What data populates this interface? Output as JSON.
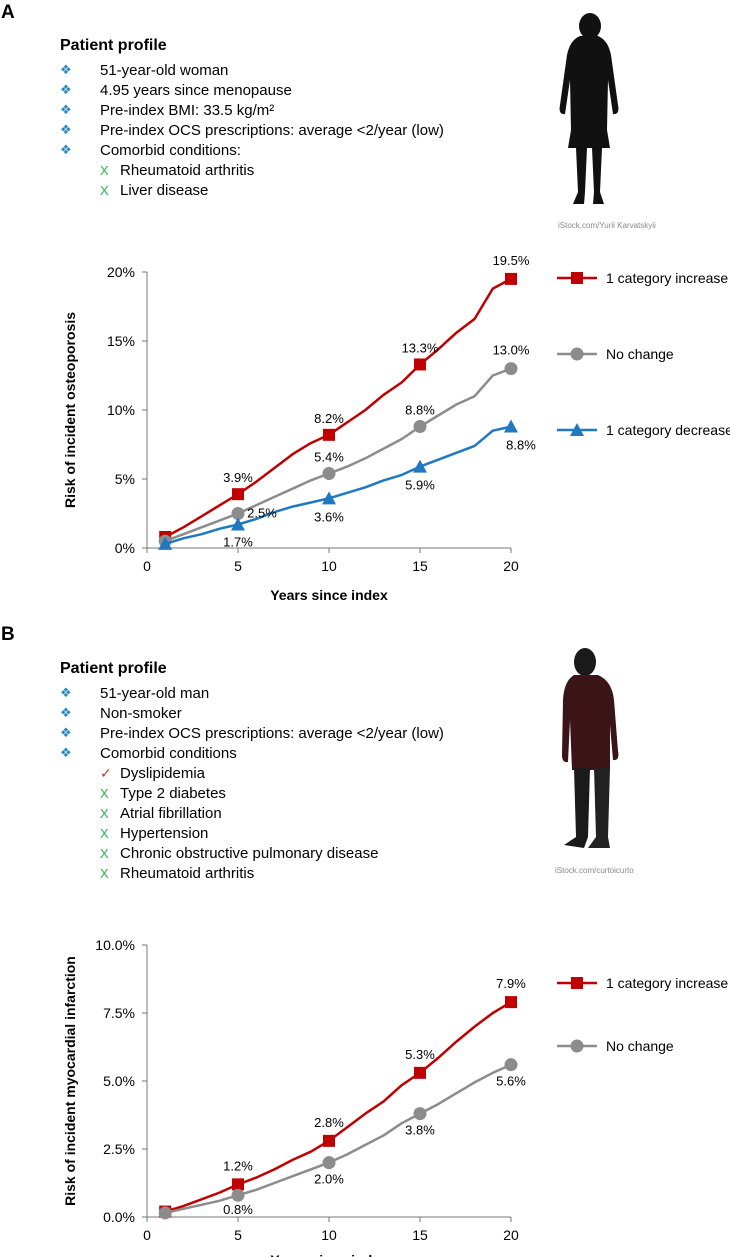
{
  "panel_a": {
    "letter": "A",
    "profile": {
      "title": "Patient profile",
      "items": [
        "51-year-old woman",
        "4.95 years since menopause",
        "Pre-index BMI: 33.5 kg/m²",
        "Pre-index OCS prescriptions: average <2/year (low)",
        "Comorbid conditions:"
      ],
      "comorbid": [
        {
          "mark": "X",
          "label": "Rheumatoid arthritis"
        },
        {
          "mark": "X",
          "label": "Liver disease"
        }
      ]
    },
    "image_credit": "iStock.com/Yurii Karvatskyii"
  },
  "panel_b": {
    "letter": "B",
    "profile": {
      "title": "Patient profile",
      "items": [
        "51-year-old man",
        "Non-smoker",
        "Pre-index OCS prescriptions: average <2/year (low)",
        "Comorbid conditions"
      ],
      "comorbid": [
        {
          "mark": "✓",
          "label": "Dyslipidemia"
        },
        {
          "mark": "X",
          "label": "Type 2 diabetes"
        },
        {
          "mark": "X",
          "label": "Atrial fibrillation"
        },
        {
          "mark": "X",
          "label": "Hypertension"
        },
        {
          "mark": "X",
          "label": "Chronic obstructive pulmonary disease"
        },
        {
          "mark": "X",
          "label": "Rheumatoid arthritis"
        }
      ]
    },
    "image_credit": "iStock.com/curtoicurto"
  },
  "colors": {
    "increase": "#c00000",
    "no_change": "#8c8c8c",
    "decrease": "#1f78c1",
    "bullet": "#2a86c7",
    "x_mark": "#2db24a",
    "check_mark": "#d42a2a"
  },
  "chart_data": [
    {
      "type": "line",
      "panel": "A",
      "title": "",
      "xlabel": "Years since index",
      "ylabel": "Risk of incident osteoporosis",
      "xlim": [
        0,
        20
      ],
      "ylim": [
        0,
        20
      ],
      "x_ticks": [
        0,
        5,
        10,
        15,
        20
      ],
      "y_ticks": [
        0,
        5,
        10,
        15,
        20
      ],
      "y_tick_labels": [
        "0%",
        "5%",
        "10%",
        "15%",
        "20%"
      ],
      "series": [
        {
          "name": "1 category increase",
          "color": "#c00000",
          "marker": "square",
          "curve_x": [
            1,
            2,
            3,
            4,
            5,
            6,
            7,
            8,
            9,
            10,
            11,
            12,
            13,
            14,
            15,
            16,
            17,
            18,
            19,
            20
          ],
          "curve_y": [
            0.8,
            1.5,
            2.3,
            3.1,
            3.9,
            4.8,
            5.8,
            6.8,
            7.6,
            8.2,
            9.1,
            10.0,
            11.1,
            12.0,
            13.3,
            14.4,
            15.6,
            16.6,
            18.8,
            19.5
          ],
          "marker_x": [
            1,
            5,
            10,
            15,
            20
          ],
          "marker_y": [
            0.8,
            3.9,
            8.2,
            13.3,
            19.5
          ],
          "labels": [
            "",
            "3.9%",
            "8.2%",
            "13.3%",
            "19.5%"
          ]
        },
        {
          "name": "No change",
          "color": "#8c8c8c",
          "marker": "circle",
          "curve_x": [
            1,
            2,
            3,
            4,
            5,
            6,
            7,
            8,
            9,
            10,
            11,
            12,
            13,
            14,
            15,
            16,
            17,
            18,
            19,
            20
          ],
          "curve_y": [
            0.5,
            1.0,
            1.5,
            2.0,
            2.5,
            3.1,
            3.7,
            4.3,
            4.9,
            5.4,
            5.9,
            6.5,
            7.2,
            7.9,
            8.8,
            9.6,
            10.4,
            11.0,
            12.5,
            13.0
          ],
          "marker_x": [
            1,
            5,
            10,
            15,
            20
          ],
          "marker_y": [
            0.5,
            2.5,
            5.4,
            8.8,
            13.0
          ],
          "labels": [
            "",
            "2.5%",
            "5.4%",
            "8.8%",
            "13.0%"
          ]
        },
        {
          "name": "1 category decrease",
          "color": "#1f78c1",
          "marker": "triangle",
          "curve_x": [
            1,
            2,
            3,
            4,
            5,
            6,
            7,
            8,
            9,
            10,
            11,
            12,
            13,
            14,
            15,
            16,
            17,
            18,
            19,
            20
          ],
          "curve_y": [
            0.3,
            0.7,
            1.0,
            1.4,
            1.7,
            2.1,
            2.6,
            3.0,
            3.3,
            3.6,
            4.0,
            4.4,
            4.9,
            5.3,
            5.9,
            6.4,
            6.9,
            7.4,
            8.5,
            8.8
          ],
          "marker_x": [
            1,
            5,
            10,
            15,
            20
          ],
          "marker_y": [
            0.3,
            1.7,
            3.6,
            5.9,
            8.8
          ],
          "labels": [
            "",
            "1.7%",
            "3.6%",
            "5.9%",
            "8.8%"
          ]
        }
      ]
    },
    {
      "type": "line",
      "panel": "B",
      "title": "",
      "xlabel": "Years since index",
      "ylabel": "Risk of incident myocardial infarction",
      "xlim": [
        0,
        20
      ],
      "ylim": [
        0,
        10
      ],
      "x_ticks": [
        0,
        5,
        10,
        15,
        20
      ],
      "y_ticks": [
        0,
        2.5,
        5,
        7.5,
        10
      ],
      "y_tick_labels": [
        "0.0%",
        "2.5%",
        "5.0%",
        "7.5%",
        "10.0%"
      ],
      "series": [
        {
          "name": "1 category increase",
          "color": "#c00000",
          "marker": "square",
          "curve_x": [
            1,
            2,
            3,
            4,
            5,
            6,
            7,
            8,
            9,
            10,
            11,
            12,
            13,
            14,
            15,
            16,
            17,
            18,
            19,
            20
          ],
          "curve_y": [
            0.2,
            0.4,
            0.65,
            0.9,
            1.2,
            1.45,
            1.75,
            2.1,
            2.4,
            2.8,
            3.3,
            3.8,
            4.25,
            4.85,
            5.3,
            5.85,
            6.45,
            7.0,
            7.5,
            7.9
          ],
          "marker_x": [
            1,
            5,
            10,
            15,
            20
          ],
          "marker_y": [
            0.2,
            1.2,
            2.8,
            5.3,
            7.9
          ],
          "labels": [
            "",
            "1.2%",
            "2.8%",
            "5.3%",
            "7.9%"
          ]
        },
        {
          "name": "No change",
          "color": "#8c8c8c",
          "marker": "circle",
          "curve_x": [
            1,
            2,
            3,
            4,
            5,
            6,
            7,
            8,
            9,
            10,
            11,
            12,
            13,
            14,
            15,
            16,
            17,
            18,
            19,
            20
          ],
          "curve_y": [
            0.15,
            0.3,
            0.45,
            0.6,
            0.8,
            1.0,
            1.25,
            1.5,
            1.75,
            2.0,
            2.3,
            2.65,
            3.0,
            3.45,
            3.8,
            4.15,
            4.55,
            4.95,
            5.3,
            5.6
          ],
          "marker_x": [
            1,
            5,
            10,
            15,
            20
          ],
          "marker_y": [
            0.15,
            0.8,
            2.0,
            3.8,
            5.6
          ],
          "labels": [
            "",
            "0.8%",
            "2.0%",
            "3.8%",
            "5.6%"
          ]
        }
      ]
    }
  ]
}
